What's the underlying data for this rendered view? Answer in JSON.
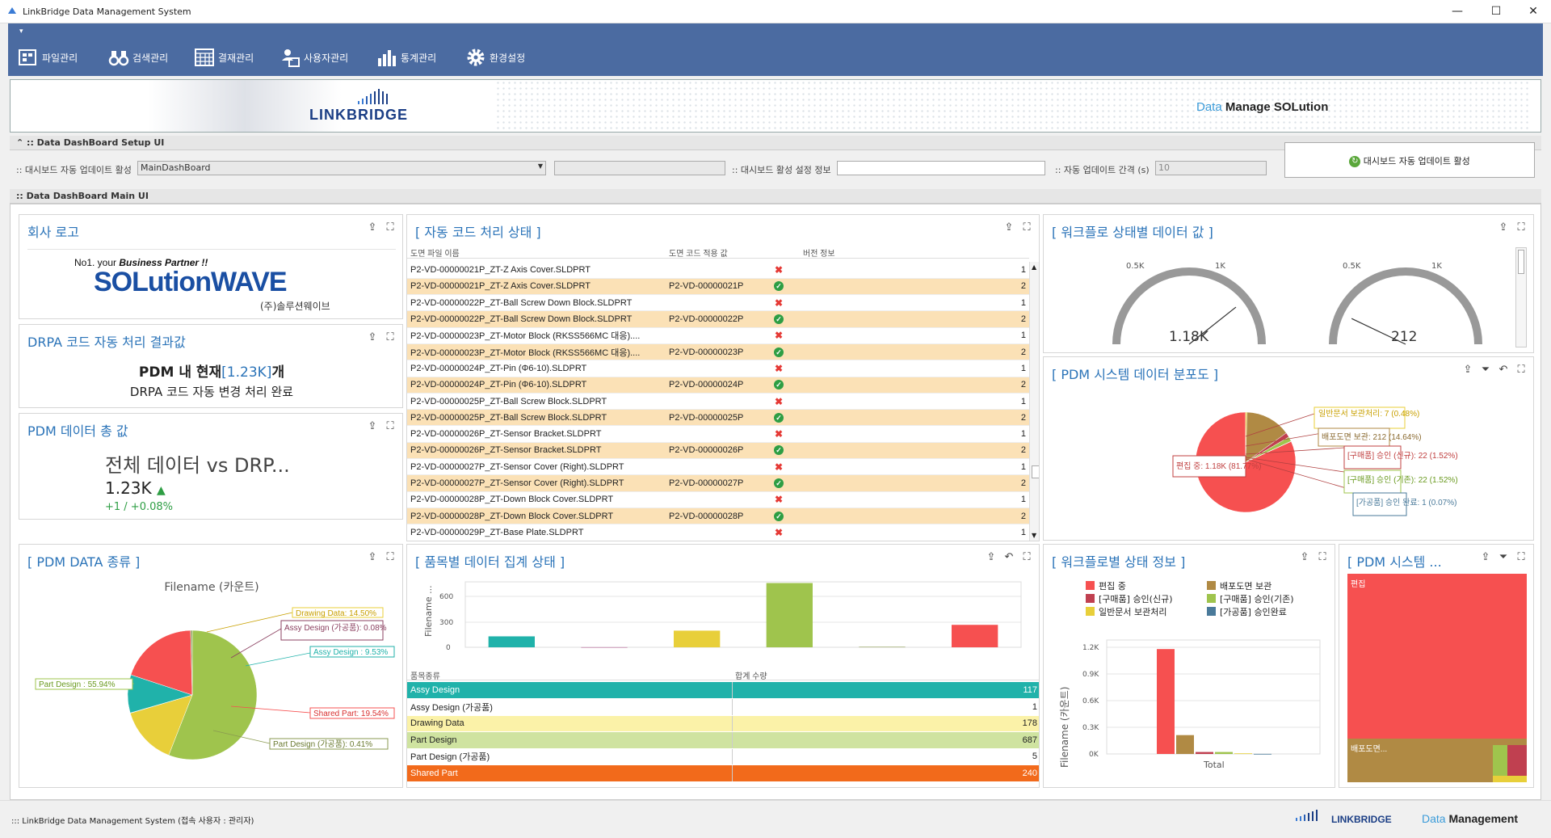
{
  "window": {
    "title": "LinkBridge Data Management System"
  },
  "ribbon": {
    "items": [
      {
        "label": "파일관리",
        "icon": "file-manage-icon"
      },
      {
        "label": "검색관리",
        "icon": "binoculars-icon"
      },
      {
        "label": "결재관리",
        "icon": "calendar-grid-icon"
      },
      {
        "label": "사용자관리",
        "icon": "user-card-icon"
      },
      {
        "label": "통계관리",
        "icon": "bar-chart-icon"
      },
      {
        "label": "환경설정",
        "icon": "gear-icon"
      }
    ]
  },
  "banner": {
    "brand": "LINKBRIDGE",
    "right_prefix": "Data",
    "right_suffix": "Manage SOLution"
  },
  "setup": {
    "section_title": ":: Data DashBoard Setup UI",
    "auto_update_label": ":: 대시보드 자동 업데이트 활성",
    "dashboard_select": "MainDashBoard",
    "active_info_label": ":: 대시보드 활성 설정 정보",
    "active_info_value": "",
    "interval_label": ":: 자동 업데이트 간격 (s)",
    "interval_value": "10",
    "activate_button": "대시보드 자동 업데이트 활성"
  },
  "main": {
    "section_title": ":: Data DashBoard Main UI"
  },
  "company_logo": {
    "title": "회사 로고",
    "tagline_pre": "No1. your ",
    "tagline_bold": "Business Partner !!",
    "wordmark": "SOLutionWAVE",
    "korean": "(주)솔루션웨이브"
  },
  "drpa": {
    "title": "DRPA 코드 자동 처리 결과값",
    "line1_pre": "PDM 내 현재",
    "line1_val": "[1.23K]",
    "line1_post": "개",
    "line2": "DRPA 코드 자동 변경 처리 완료"
  },
  "total": {
    "title": "PDM 데이터 총 값",
    "headline": "전체 데이터 vs DRP...",
    "value": "1.23K",
    "delta": "+1 / +0.08%"
  },
  "auto_code": {
    "title": "[ 자동 코드 처리 상태 ]",
    "columns": [
      "도면 파일 이름",
      "도면 코드 적용 값",
      "버전 정보"
    ],
    "rows": [
      {
        "name": "P2-VD-00000021P_ZT-Z Axis Cover.SLDPRT",
        "code": "",
        "status": "x",
        "ver": "1",
        "hl": false
      },
      {
        "name": "P2-VD-00000021P_ZT-Z Axis Cover.SLDPRT",
        "code": "P2-VD-00000021P",
        "status": "ok",
        "ver": "2",
        "hl": true
      },
      {
        "name": "P2-VD-00000022P_ZT-Ball Screw Down Block.SLDPRT",
        "code": "",
        "status": "x",
        "ver": "1",
        "hl": false
      },
      {
        "name": "P2-VD-00000022P_ZT-Ball Screw Down Block.SLDPRT",
        "code": "P2-VD-00000022P",
        "status": "ok",
        "ver": "2",
        "hl": true
      },
      {
        "name": "P2-VD-00000023P_ZT-Motor Block (RKSS566MC 대응)....",
        "code": "",
        "status": "x",
        "ver": "1",
        "hl": false
      },
      {
        "name": "P2-VD-00000023P_ZT-Motor Block (RKSS566MC 대응)....",
        "code": "P2-VD-00000023P",
        "status": "ok",
        "ver": "2",
        "hl": true
      },
      {
        "name": "P2-VD-00000024P_ZT-Pin (Φ6-10).SLDPRT",
        "code": "",
        "status": "x",
        "ver": "1",
        "hl": false
      },
      {
        "name": "P2-VD-00000024P_ZT-Pin (Φ6-10).SLDPRT",
        "code": "P2-VD-00000024P",
        "status": "ok",
        "ver": "2",
        "hl": true
      },
      {
        "name": "P2-VD-00000025P_ZT-Ball Screw Block.SLDPRT",
        "code": "",
        "status": "x",
        "ver": "1",
        "hl": false
      },
      {
        "name": "P2-VD-00000025P_ZT-Ball Screw Block.SLDPRT",
        "code": "P2-VD-00000025P",
        "status": "ok",
        "ver": "2",
        "hl": true
      },
      {
        "name": "P2-VD-00000026P_ZT-Sensor Bracket.SLDPRT",
        "code": "",
        "status": "x",
        "ver": "1",
        "hl": false
      },
      {
        "name": "P2-VD-00000026P_ZT-Sensor Bracket.SLDPRT",
        "code": "P2-VD-00000026P",
        "status": "ok",
        "ver": "2",
        "hl": true
      },
      {
        "name": "P2-VD-00000027P_ZT-Sensor Cover (Right).SLDPRT",
        "code": "",
        "status": "x",
        "ver": "1",
        "hl": false
      },
      {
        "name": "P2-VD-00000027P_ZT-Sensor Cover (Right).SLDPRT",
        "code": "P2-VD-00000027P",
        "status": "ok",
        "ver": "2",
        "hl": true
      },
      {
        "name": "P2-VD-00000028P_ZT-Down Block Cover.SLDPRT",
        "code": "",
        "status": "x",
        "ver": "1",
        "hl": false
      },
      {
        "name": "P2-VD-00000028P_ZT-Down Block Cover.SLDPRT",
        "code": "P2-VD-00000028P",
        "status": "ok",
        "ver": "2",
        "hl": true
      },
      {
        "name": "P2-VD-00000029P_ZT-Base Plate.SLDPRT",
        "code": "",
        "status": "x",
        "ver": "1",
        "hl": false
      }
    ]
  },
  "workflow_values": {
    "title": "[ 워크플로 상태별 데이터 값 ]",
    "gauges": [
      {
        "value_label": "1.18K",
        "value": 1180,
        "max": 1500,
        "ticks": [
          "0.5K",
          "1K"
        ]
      },
      {
        "value_label": "212",
        "value": 212,
        "max": 1500,
        "ticks": [
          "0.5K",
          "1K"
        ]
      }
    ]
  },
  "pdm_dist": {
    "title": "[ PDM 시스템 데이터 분포도 ]",
    "labels": [
      "일반문서 보관처리: 7 (0.48%)",
      "배포도면 보관: 212 (14.64%)",
      "[구매품] 승인 (신규): 22 (1.52%)",
      "[구매품] 승인 (기존): 22 (1.52%)",
      "[가공품] 승인 완료: 1 (0.07%)",
      "편집 중: 1.18K (81.77%)"
    ]
  },
  "pdm_type": {
    "title": "[ PDM DATA 종류 ]",
    "subtitle": "Filename (카운트)",
    "labels": [
      "Drawing Data: 14.50%",
      "Assy Design (가공품): 0.08%",
      "Assy Design : 9.53%",
      "Shared Part: 19.54%",
      "Part Design (가공품): 0.41%",
      "Part Design : 55.94%"
    ]
  },
  "item_summary": {
    "title": "[ 품목별 데이터 집계 상태 ]",
    "y_label": "Filename ...",
    "y_ticks": [
      "600",
      "300",
      "0"
    ],
    "columns": [
      "품목종류",
      "합계 수량"
    ],
    "rows": [
      {
        "name": "Assy Design",
        "value": "117",
        "color": "#20b2aa",
        "fg": "#fff"
      },
      {
        "name": "Assy Design (가공품)",
        "value": "1",
        "color": "#ffffff",
        "fg": "#222"
      },
      {
        "name": "Drawing Data",
        "value": "178",
        "color": "#fbf2a8",
        "fg": "#222"
      },
      {
        "name": "Part Design",
        "value": "687",
        "color": "#cfe3a0",
        "fg": "#222"
      },
      {
        "name": "Part Design (가공품)",
        "value": "5",
        "color": "#ffffff",
        "fg": "#222"
      },
      {
        "name": "Shared Part",
        "value": "240",
        "color": "#f26a1b",
        "fg": "#fff"
      }
    ]
  },
  "workflow_state": {
    "title": "[ 워크플로별 상태 정보 ]",
    "legend": [
      "편집 중",
      "배포도면 보관",
      "[구매품] 승인(신규)",
      "[구매품] 승인(기존)",
      "일반문서 보관처리",
      "[가공품] 승인완료"
    ],
    "y_label": "Filename (카운트)",
    "y_ticks": [
      "1.2K",
      "0.9K",
      "0.6K",
      "0.3K",
      "0K"
    ],
    "x_label": "Total"
  },
  "pdm_tree": {
    "title": "[ PDM 시스템 ...",
    "cell1": "편집",
    "cell2": "배포도면..."
  },
  "chart_data": [
    {
      "type": "bar",
      "title": "[ 품목별 데이터 집계 상태 ]",
      "categories": [
        "Assy Design",
        "Assy Design (가공품)",
        "Drawing Data",
        "Part Design",
        "Part Design (가공품)",
        "Shared Part"
      ],
      "values": [
        117,
        1,
        178,
        687,
        5,
        240
      ],
      "ylabel": "Filename ...",
      "ylim": [
        0,
        700
      ]
    },
    {
      "type": "bar",
      "title": "[ 워크플로별 상태 정보 ]",
      "categories": [
        "Total"
      ],
      "series": [
        {
          "name": "편집 중",
          "values": [
            1180
          ]
        },
        {
          "name": "배포도면 보관",
          "values": [
            212
          ]
        },
        {
          "name": "[구매품] 승인(신규)",
          "values": [
            22
          ]
        },
        {
          "name": "[구매품] 승인(기존)",
          "values": [
            22
          ]
        },
        {
          "name": "일반문서 보관처리",
          "values": [
            7
          ]
        },
        {
          "name": "[가공품] 승인완료",
          "values": [
            1
          ]
        }
      ],
      "ylabel": "Filename (카운트)",
      "ylim": [
        0,
        1200
      ]
    },
    {
      "type": "pie",
      "title": "[ PDM DATA 종류 ]",
      "categories": [
        "Part Design",
        "Drawing Data",
        "Assy Design (가공품)",
        "Assy Design",
        "Shared Part",
        "Part Design (가공품)"
      ],
      "values": [
        55.94,
        14.5,
        0.08,
        9.53,
        19.54,
        0.41
      ]
    },
    {
      "type": "pie",
      "title": "[ PDM 시스템 데이터 분포도 ]",
      "categories": [
        "편집 중",
        "일반문서 보관처리",
        "배포도면 보관",
        "[구매품] 승인 (신규)",
        "[구매품] 승인 (기존)",
        "[가공품] 승인 완료"
      ],
      "values": [
        81.77,
        0.48,
        14.64,
        1.52,
        1.52,
        0.07
      ]
    }
  ],
  "colors": {
    "ribbon": "#4b6ba1",
    "accent_title": "#2a73b8",
    "highlight_row": "#fbe1b6",
    "red": "#f65050",
    "brown": "#b08a44",
    "teal": "#20b2aa",
    "yellow": "#e8cf3a",
    "green": "#9fc44d"
  },
  "statusbar": {
    "text": "::: LinkBridge Data Management System (접속 사용자 : 관리자)",
    "brand": "LINKBRIDGE",
    "right_prefix": "Data",
    "right_suffix": "Management"
  }
}
